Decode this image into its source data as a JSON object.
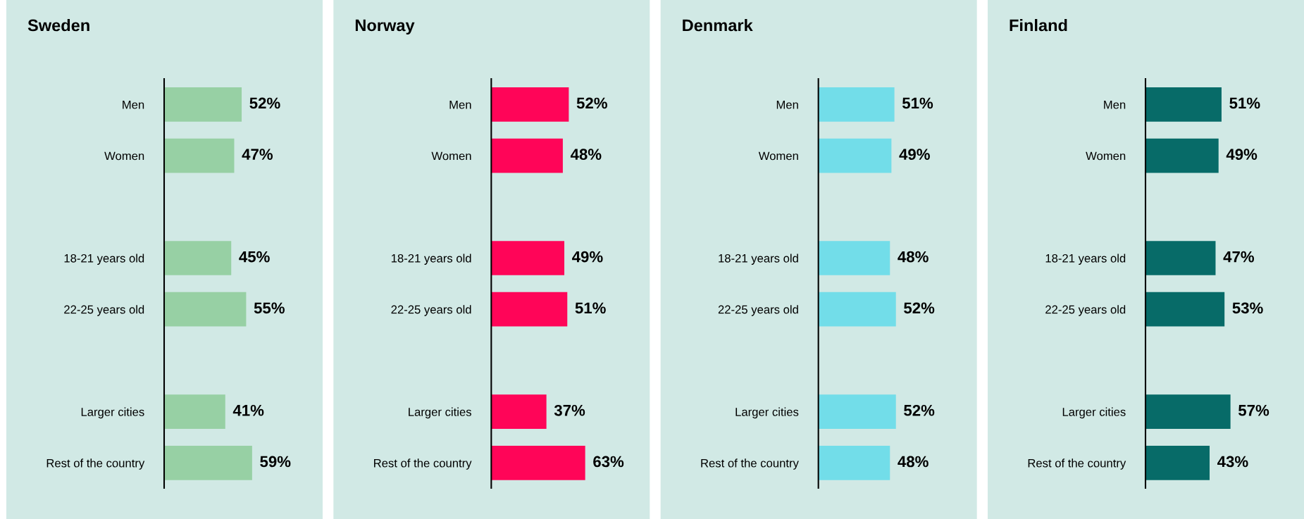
{
  "chart_data": [
    {
      "type": "bar",
      "orientation": "horizontal",
      "title": "Sweden",
      "color": "#97d0a4",
      "grid": false,
      "categories": [
        "Men",
        "Women",
        null,
        "18-21 years old",
        "22-25 years old",
        null,
        "Larger cities",
        "Rest of the country"
      ],
      "values": [
        52,
        47,
        null,
        45,
        55,
        null,
        41,
        59
      ],
      "value_labels": [
        "52%",
        "47%",
        null,
        "45%",
        "55%",
        null,
        "41%",
        "59%"
      ]
    },
    {
      "type": "bar",
      "orientation": "horizontal",
      "title": "Norway",
      "color": "#ff0558",
      "grid": false,
      "categories": [
        "Men",
        "Women",
        null,
        "18-21 years old",
        "22-25 years old",
        null,
        "Larger cities",
        "Rest of the country"
      ],
      "values": [
        52,
        48,
        null,
        49,
        51,
        null,
        37,
        63
      ],
      "value_labels": [
        "52%",
        "48%",
        null,
        "49%",
        "51%",
        null,
        "37%",
        "63%"
      ]
    },
    {
      "type": "bar",
      "orientation": "horizontal",
      "title": "Denmark",
      "color": "#72dde9",
      "grid": false,
      "categories": [
        "Men",
        "Women",
        null,
        "18-21 years old",
        "22-25 years old",
        null,
        "Larger cities",
        "Rest of the country"
      ],
      "values": [
        51,
        49,
        null,
        48,
        52,
        null,
        52,
        48
      ],
      "value_labels": [
        "51%",
        "49%",
        null,
        "48%",
        "52%",
        null,
        "52%",
        "48%"
      ]
    },
    {
      "type": "bar",
      "orientation": "horizontal",
      "title": "Finland",
      "color": "#076b68",
      "grid": false,
      "categories": [
        "Men",
        "Women",
        null,
        "18-21 years old",
        "22-25 years old",
        null,
        "Larger cities",
        "Rest of the country"
      ],
      "values": [
        51,
        49,
        null,
        47,
        53,
        null,
        57,
        43
      ],
      "value_labels": [
        "51%",
        "49%",
        null,
        "47%",
        "53%",
        null,
        "57%",
        "43%"
      ]
    }
  ]
}
